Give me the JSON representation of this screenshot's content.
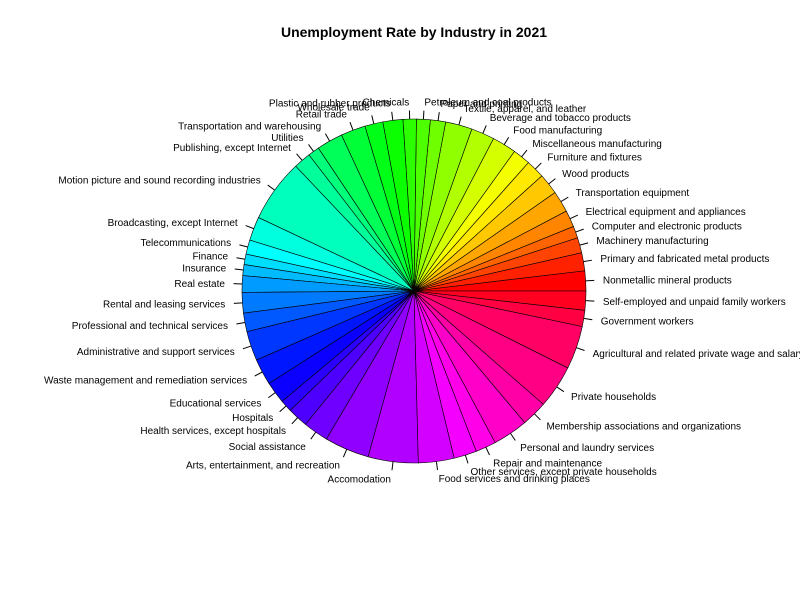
{
  "chart_data": {
    "type": "pie",
    "title": "Unemployment Rate by Industry in 2021",
    "direction": "counter-clockwise",
    "start": "3 o'clock",
    "palette": "rainbow",
    "categories": [
      "Nonmetallic mineral products",
      "Primary and fabricated metal products",
      "Machinery manufacturing",
      "Computer and electronic products",
      "Electrical equipment and appliances",
      "Transportation equipment",
      "Wood products",
      "Furniture and fixtures",
      "Miscellaneous manufacturing",
      "Food manufacturing",
      "Beverage and tobacco products",
      "Textile, apparel, and leather",
      "Paper and printing",
      "Petroleum and coal products",
      "Chemicals",
      "Plastic and rubber products",
      "Wholesale trade",
      "Retail trade",
      "Transportation and warehousing",
      "Utilities",
      "Publishing, except Internet",
      "Motion picture and sound recording industries",
      "Broadcasting, except Internet",
      "Telecommunications",
      "Finance",
      "Insurance",
      "Real estate",
      "Rental and leasing services",
      "Professional and technical services",
      "Administrative and support services",
      "Waste management and remediation services",
      "Educational services",
      "Hospitals",
      "Health services, except hospitals",
      "Social assistance",
      "Arts, entertainment, and recreation",
      "Accomodation",
      "Food services and drinking places",
      "Other services, except private households",
      "Repair and maintenance",
      "Personal and laundry services",
      "Membership associations and organizations",
      "Private households",
      "Agricultural and related private wage and salary workers",
      "Government workers",
      "Self-employed and unpaid family workers"
    ],
    "values": [
      4.2,
      3.8,
      3.2,
      2.5,
      3.5,
      4.5,
      4.4,
      3.9,
      3.7,
      5.1,
      4.9,
      5.6,
      3.2,
      2.9,
      2.8,
      4.2,
      3.8,
      5.2,
      5.5,
      2.4,
      3.6,
      13.2,
      5.0,
      3.0,
      2.2,
      2.3,
      3.5,
      4.3,
      3.9,
      6.2,
      5.5,
      4.6,
      2.5,
      4.3,
      5.3,
      9.4,
      10.5,
      7.5,
      4.8,
      4.3,
      7.4,
      5.4,
      9.1,
      9.1,
      3.4,
      4.0
    ]
  }
}
